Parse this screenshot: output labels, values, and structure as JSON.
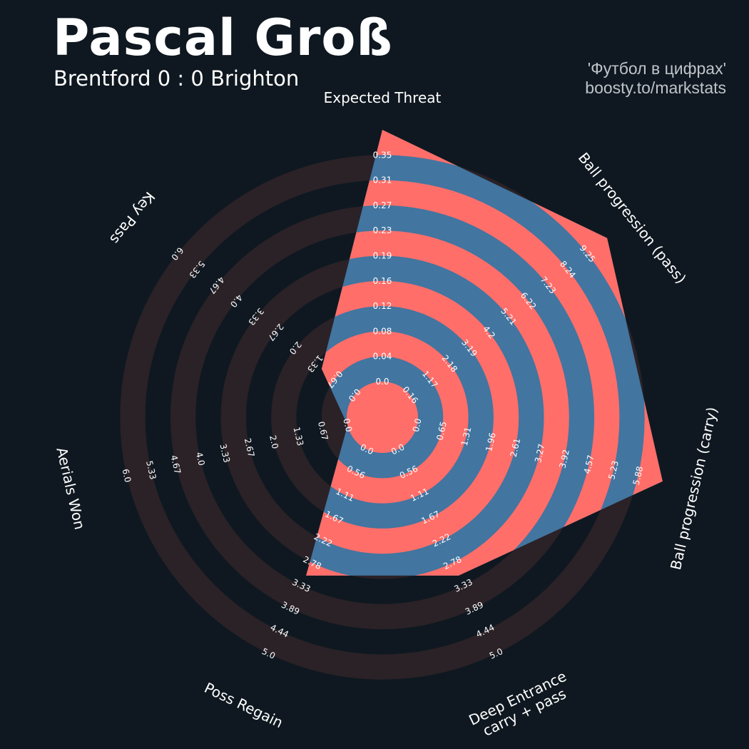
{
  "title": "Pascal Groß",
  "subtitle": "Brentford 0 : 0 Brighton",
  "credit_line1": "'Футбол в цифрах'",
  "credit_line2": "boosty.to/markstats",
  "colors": {
    "background": "#0f1820",
    "ring_band": "#2a2227",
    "ring_highlight": "#ff6e69",
    "player_fill": "#4275a0",
    "text": "#ffffff"
  },
  "chart_data": {
    "type": "radar",
    "title": "Pascal Groß",
    "subtitle": "Brentford 0 : 0 Brighton",
    "series": [
      {
        "name": "Pascal Groß",
        "values": [
          0.35,
          9.25,
          5.88,
          2.78,
          2.78,
          0.0,
          1.0
        ]
      }
    ],
    "axes": [
      {
        "label": "Expected Threat",
        "min": 0,
        "max": 0.35,
        "value": 0.35,
        "ticks": [
          "0.0",
          "0.04",
          "0.08",
          "0.12",
          "0.16",
          "0.19",
          "0.23",
          "0.27",
          "0.31",
          "0.35"
        ]
      },
      {
        "label": "Ball progression (pass)",
        "min": 0,
        "max": 9.25,
        "value": 9.25,
        "ticks": [
          "0.16",
          "1.17",
          "2.18",
          "3.19",
          "4.2",
          "5.21",
          "6.22",
          "7.23",
          "8.24",
          "9.25"
        ]
      },
      {
        "label": "Ball progression (carry)",
        "min": 0,
        "max": 5.88,
        "value": 5.88,
        "ticks": [
          "0.0",
          "0.65",
          "1.31",
          "1.96",
          "2.61",
          "3.27",
          "3.92",
          "4.57",
          "5.23",
          "5.88"
        ]
      },
      {
        "label": "Deep Entrance\ncarry + pass",
        "min": 0,
        "max": 5.0,
        "value": 2.78,
        "ticks": [
          "0.0",
          "0.56",
          "1.11",
          "1.67",
          "2.22",
          "2.78",
          "3.33",
          "3.89",
          "4.44",
          "5.0"
        ]
      },
      {
        "label": "Poss Regain",
        "min": 0,
        "max": 5.0,
        "value": 2.78,
        "ticks": [
          "0.0",
          "0.56",
          "1.11",
          "1.67",
          "2.22",
          "2.78",
          "3.33",
          "3.89",
          "4.44",
          "5.0"
        ]
      },
      {
        "label": "Aerials Won",
        "min": 0,
        "max": 6.0,
        "value": 0.0,
        "ticks": [
          "0.0",
          "0.67",
          "1.33",
          "2.0",
          "2.67",
          "3.33",
          "4.0",
          "4.67",
          "5.33",
          "6.0"
        ]
      },
      {
        "label": "Key Pass",
        "min": 0,
        "max": 6.0,
        "value": 1.0,
        "ticks": [
          "0.0",
          "0.67",
          "1.33",
          "2.0",
          "2.67",
          "3.33",
          "4.0",
          "4.67",
          "5.33",
          "6.0"
        ]
      }
    ]
  }
}
